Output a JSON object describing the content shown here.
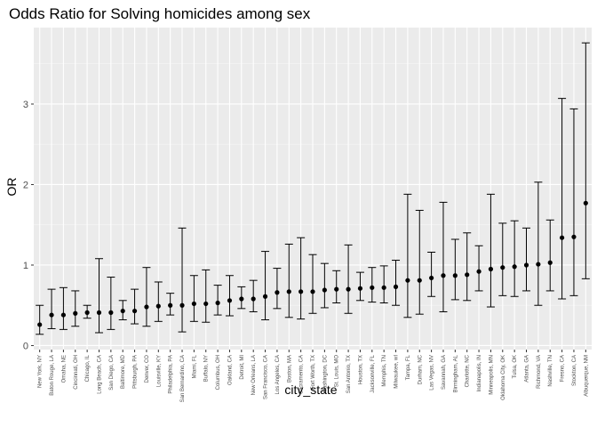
{
  "chart_data": {
    "type": "errorbar",
    "title": "Odds Ratio for Solving homicides among sex",
    "xlabel": "city_state",
    "ylabel": "OR",
    "ylim": [
      -0.05,
      3.95
    ],
    "yticks": [
      0,
      1,
      2,
      3
    ],
    "grid": true,
    "colors": {
      "panel": "#ebebeb",
      "grid_major": "#ffffff",
      "grid_minor": "#f5f5f5",
      "mark": "#000000",
      "tick_text": "#4d4d4d"
    },
    "points": [
      {
        "city": "New York, NY",
        "or": 0.26,
        "lo": 0.14,
        "hi": 0.5
      },
      {
        "city": "Baton Rouge, LA",
        "or": 0.38,
        "lo": 0.21,
        "hi": 0.7
      },
      {
        "city": "Omaha, NE",
        "or": 0.38,
        "lo": 0.2,
        "hi": 0.72
      },
      {
        "city": "Cincinnati, OH",
        "or": 0.4,
        "lo": 0.24,
        "hi": 0.68
      },
      {
        "city": "Chicago, IL",
        "or": 0.41,
        "lo": 0.34,
        "hi": 0.5
      },
      {
        "city": "Long Beach, CA",
        "or": 0.41,
        "lo": 0.16,
        "hi": 1.08
      },
      {
        "city": "San Diego, CA",
        "or": 0.41,
        "lo": 0.2,
        "hi": 0.85
      },
      {
        "city": "Baltimore, MD",
        "or": 0.43,
        "lo": 0.32,
        "hi": 0.56
      },
      {
        "city": "Pittsburgh, PA",
        "or": 0.43,
        "lo": 0.27,
        "hi": 0.7
      },
      {
        "city": "Denver, CO",
        "or": 0.48,
        "lo": 0.24,
        "hi": 0.97
      },
      {
        "city": "Louisville, KY",
        "or": 0.49,
        "lo": 0.3,
        "hi": 0.79
      },
      {
        "city": "Philadelphia, PA",
        "or": 0.5,
        "lo": 0.38,
        "hi": 0.65
      },
      {
        "city": "San Bernardino, CA",
        "or": 0.5,
        "lo": 0.17,
        "hi": 1.46
      },
      {
        "city": "Miami, FL",
        "or": 0.52,
        "lo": 0.3,
        "hi": 0.87
      },
      {
        "city": "Buffalo, NY",
        "or": 0.52,
        "lo": 0.29,
        "hi": 0.94
      },
      {
        "city": "Columbus, OH",
        "or": 0.53,
        "lo": 0.38,
        "hi": 0.75
      },
      {
        "city": "Oakland, CA",
        "or": 0.56,
        "lo": 0.37,
        "hi": 0.87
      },
      {
        "city": "Detroit, MI",
        "or": 0.58,
        "lo": 0.46,
        "hi": 0.73
      },
      {
        "city": "New Orleans, LA",
        "or": 0.58,
        "lo": 0.42,
        "hi": 0.81
      },
      {
        "city": "San Francisco, CA",
        "or": 0.61,
        "lo": 0.32,
        "hi": 1.17
      },
      {
        "city": "Los Angeles, CA",
        "or": 0.66,
        "lo": 0.46,
        "hi": 0.96
      },
      {
        "city": "Boston, MA",
        "or": 0.67,
        "lo": 0.35,
        "hi": 1.26
      },
      {
        "city": "Sacramento, CA",
        "or": 0.67,
        "lo": 0.33,
        "hi": 1.34
      },
      {
        "city": "Fort Worth, TX",
        "or": 0.67,
        "lo": 0.4,
        "hi": 1.13
      },
      {
        "city": "Washington, DC",
        "or": 0.69,
        "lo": 0.47,
        "hi": 1.02
      },
      {
        "city": "St. Louis, MO",
        "or": 0.7,
        "lo": 0.53,
        "hi": 0.93
      },
      {
        "city": "San Antonio, TX",
        "or": 0.7,
        "lo": 0.4,
        "hi": 1.25
      },
      {
        "city": "Houston, TX",
        "or": 0.71,
        "lo": 0.56,
        "hi": 0.91
      },
      {
        "city": "Jacksonville, FL",
        "or": 0.72,
        "lo": 0.54,
        "hi": 0.97
      },
      {
        "city": "Memphis, TN",
        "or": 0.72,
        "lo": 0.53,
        "hi": 0.99
      },
      {
        "city": "Milwaukee, wI",
        "or": 0.73,
        "lo": 0.5,
        "hi": 1.06
      },
      {
        "city": "Tampa, FL",
        "or": 0.81,
        "lo": 0.35,
        "hi": 1.88
      },
      {
        "city": "Durham, NC",
        "or": 0.81,
        "lo": 0.39,
        "hi": 1.68
      },
      {
        "city": "Las Vegas, NV",
        "or": 0.84,
        "lo": 0.61,
        "hi": 1.16
      },
      {
        "city": "Savannah, GA",
        "or": 0.87,
        "lo": 0.42,
        "hi": 1.78
      },
      {
        "city": "Birmingham, AL",
        "or": 0.87,
        "lo": 0.57,
        "hi": 1.32
      },
      {
        "city": "Charlotte, NC",
        "or": 0.88,
        "lo": 0.56,
        "hi": 1.4
      },
      {
        "city": "Indianapolis, IN",
        "or": 0.92,
        "lo": 0.68,
        "hi": 1.24
      },
      {
        "city": "Minneapolis, MN",
        "or": 0.95,
        "lo": 0.48,
        "hi": 1.88
      },
      {
        "city": "Oklahoma City, OK",
        "or": 0.97,
        "lo": 0.62,
        "hi": 1.52
      },
      {
        "city": "Tulsa, OK",
        "or": 0.98,
        "lo": 0.61,
        "hi": 1.55
      },
      {
        "city": "Atlanta, GA",
        "or": 1.0,
        "lo": 0.68,
        "hi": 1.46
      },
      {
        "city": "Richmond, VA",
        "or": 1.01,
        "lo": 0.5,
        "hi": 2.03
      },
      {
        "city": "Nashville, TN",
        "or": 1.03,
        "lo": 0.68,
        "hi": 1.56
      },
      {
        "city": "Fresno, CA",
        "or": 1.34,
        "lo": 0.58,
        "hi": 3.07
      },
      {
        "city": "Stockton, CA",
        "or": 1.35,
        "lo": 0.62,
        "hi": 2.94
      },
      {
        "city": "Albuquerque, NM",
        "or": 1.77,
        "lo": 0.83,
        "hi": 3.76
      }
    ]
  }
}
